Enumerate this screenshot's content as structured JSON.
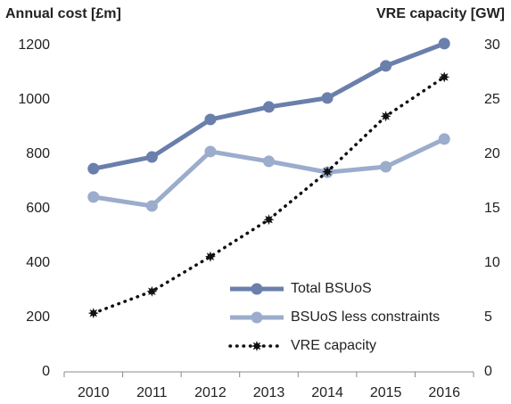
{
  "chart_data": {
    "type": "line",
    "y_axis_title": "Annual cost [£m]",
    "y2_axis_title": "VRE capacity [GW]",
    "categories": [
      "2010",
      "2011",
      "2012",
      "2013",
      "2014",
      "2015",
      "2016"
    ],
    "ylim": [
      0,
      1200
    ],
    "yticks": [
      0,
      200,
      400,
      600,
      800,
      1000,
      1200
    ],
    "y2lim": [
      0,
      30
    ],
    "y2ticks": [
      0,
      5,
      10,
      15,
      20,
      25,
      30
    ],
    "legend": "lower right",
    "series": [
      {
        "name": "Total BSUoS",
        "color": "#6a7fab",
        "marker": "circle",
        "values": [
          747,
          790,
          928,
          974,
          1007,
          1125,
          1207
        ]
      },
      {
        "name": "BSUoS less constraints",
        "color": "#9baccc",
        "marker": "circle",
        "values": [
          643,
          610,
          810,
          774,
          734,
          754,
          856
        ]
      },
      {
        "name": "VRE capacity",
        "color": "#111111",
        "marker": "star",
        "dashed": true,
        "axis": "y2",
        "values": [
          5.4,
          7.4,
          10.6,
          14.0,
          18.4,
          23.5,
          27.1
        ]
      }
    ]
  }
}
